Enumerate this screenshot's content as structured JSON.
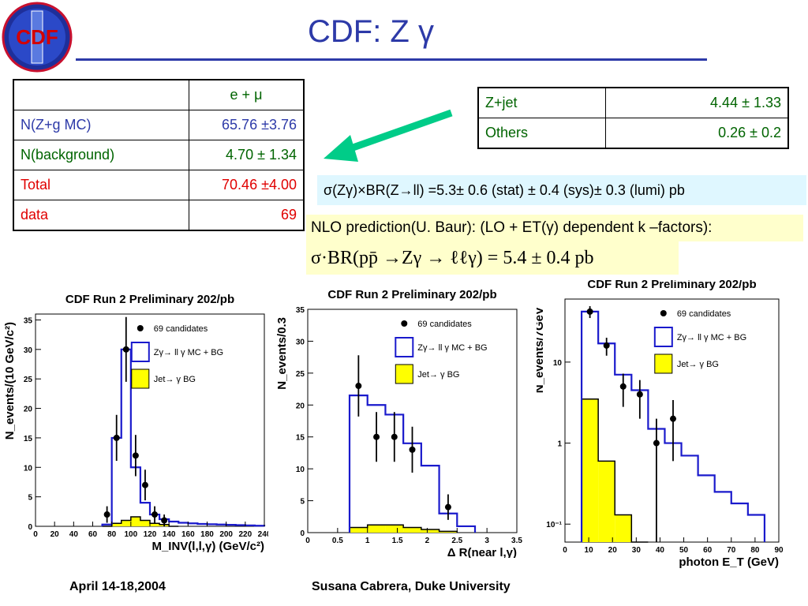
{
  "slide": {
    "title": "CDF:  Z γ",
    "logo_text": "CDF",
    "footer_left": "April 14-18,2004",
    "footer_center": "Susana Cabrera, Duke University"
  },
  "table_main": {
    "header": [
      "",
      "e + μ"
    ],
    "rows": [
      {
        "label": "N(Z+g MC)",
        "value": "65.76 ±3.76",
        "color": "#2d3aa8"
      },
      {
        "label": "N(background)",
        "value": "4.70 ± 1.34",
        "color": "#006400"
      },
      {
        "label": "Total",
        "value": "70.46 ±4.00",
        "color": "#e00000"
      },
      {
        "label": "data",
        "value": "69",
        "color": "#e00000"
      }
    ]
  },
  "table_bg": {
    "rows": [
      {
        "label": "Z+jet",
        "value": "4.44 ± 1.33"
      },
      {
        "label": "Others",
        "value": "0.26 ± 0.2"
      }
    ]
  },
  "cross_section": "σ(Zγ)×BR(Z→ll) =5.3± 0.6 (stat) ± 0.4 (sys)±  0.3 (lumi) pb",
  "nlo_text": "NLO prediction(U. Baur): (LO + ET(γ) dependent k –factors):",
  "prediction": "σ·BR(pp̄ →Zγ → ℓℓγ)  = 5.4 ± 0.4 pb",
  "colors": {
    "mc_line": "#1a1acc",
    "bg_fill": "#ffff00",
    "accent": "#2d3aa8",
    "arrow": "#00cc88"
  },
  "legend": {
    "data": "69 candidates",
    "mc": "Zγ→ ll γ MC + BG",
    "bg": "Jet→ γ BG"
  },
  "chart_data": [
    {
      "type": "histogram",
      "title": "CDF Run 2 Preliminary 202/pb",
      "xlabel": "M_INV(l,l,γ) (GeV/c²)",
      "ylabel": "N_events/(10 GeV/c²)",
      "xlim": [
        0,
        240
      ],
      "ylim": [
        0,
        36
      ],
      "xticks": [
        0,
        20,
        40,
        60,
        80,
        100,
        120,
        140,
        160,
        180,
        200,
        220,
        240
      ],
      "yticks": [
        0,
        5,
        10,
        15,
        20,
        25,
        30,
        35
      ],
      "log": false,
      "mc_edges": [
        70,
        80,
        90,
        100,
        110,
        120,
        130,
        140,
        150,
        160,
        170,
        180,
        190,
        200,
        210,
        220,
        230,
        240
      ],
      "mc_values": [
        0.3,
        15,
        30,
        10,
        4,
        2,
        1.2,
        0.8,
        0.6,
        0.5,
        0.4,
        0.35,
        0.3,
        0.25,
        0.2,
        0.15,
        0.1
      ],
      "bg_edges": [
        70,
        80,
        90,
        100,
        110,
        120,
        130,
        140,
        150
      ],
      "bg_values": [
        0,
        0.5,
        1,
        1.6,
        1,
        0.5,
        0.3,
        0
      ],
      "data_points": [
        {
          "x": 75,
          "y": 2,
          "err": 1.4
        },
        {
          "x": 85,
          "y": 15,
          "err": 3.9
        },
        {
          "x": 95,
          "y": 30,
          "err": 5.5
        },
        {
          "x": 105,
          "y": 12,
          "err": 3.5
        },
        {
          "x": 115,
          "y": 7,
          "err": 2.6
        },
        {
          "x": 125,
          "y": 2,
          "err": 1.4
        },
        {
          "x": 135,
          "y": 1,
          "err": 1
        }
      ]
    },
    {
      "type": "histogram",
      "title": "CDF Run 2 Preliminary 202/pb",
      "xlabel": "Δ R(near l,γ)",
      "ylabel": "N_events/0.3",
      "xlim": [
        0,
        3.5
      ],
      "ylim": [
        0,
        35
      ],
      "xticks": [
        0,
        0.5,
        1,
        1.5,
        2,
        2.5,
        3,
        3.5
      ],
      "xtick_labels": [
        "0",
        "0.5",
        "1",
        "1.5",
        "2",
        "2.5",
        "3",
        "3.5"
      ],
      "yticks": [
        0,
        5,
        10,
        15,
        20,
        25,
        30,
        35
      ],
      "log": false,
      "mc_edges": [
        0.7,
        1.0,
        1.3,
        1.6,
        1.9,
        2.2,
        2.5,
        2.8
      ],
      "mc_values": [
        21.5,
        20,
        18.5,
        14,
        10.5,
        3,
        1
      ],
      "bg_edges": [
        0.7,
        1.0,
        1.3,
        1.6,
        1.9,
        2.2,
        2.5
      ],
      "bg_values": [
        0.8,
        1.2,
        1.2,
        0.8,
        0.5,
        0.2
      ],
      "data_points": [
        {
          "x": 0.85,
          "y": 23,
          "err": 4.8
        },
        {
          "x": 1.15,
          "y": 15,
          "err": 3.9
        },
        {
          "x": 1.45,
          "y": 15,
          "err": 3.9
        },
        {
          "x": 1.75,
          "y": 13,
          "err": 3.6
        },
        {
          "x": 2.35,
          "y": 4,
          "err": 2
        }
      ]
    },
    {
      "type": "histogram",
      "title": "CDF Run 2 Preliminary 202/pb",
      "xlabel": "photon E_T (GeV)",
      "ylabel": "N_events/7GeV",
      "xlim": [
        0,
        90
      ],
      "ylim": [
        0.06,
        60
      ],
      "xticks": [
        0,
        10,
        20,
        30,
        40,
        50,
        60,
        70,
        80,
        90
      ],
      "yticks": [
        0.1,
        1,
        10
      ],
      "ytick_labels": [
        "10⁻¹",
        "1",
        "10"
      ],
      "log": true,
      "mc_edges": [
        7,
        14,
        21,
        28,
        35,
        42,
        49,
        56,
        63,
        70,
        77,
        84
      ],
      "mc_values": [
        42,
        17,
        7,
        4.5,
        1.5,
        1,
        0.7,
        0.4,
        0.25,
        0.18,
        0.13
      ],
      "bg_edges": [
        7,
        14,
        21,
        28,
        35
      ],
      "bg_values": [
        3.5,
        0.6,
        0.13,
        0.01
      ],
      "data_points": [
        {
          "x": 10.5,
          "y": 42,
          "err_lo": 7,
          "err_hi": 7
        },
        {
          "x": 17.5,
          "y": 16,
          "err_lo": 4,
          "err_hi": 4
        },
        {
          "x": 24.5,
          "y": 5,
          "err_lo": 2.2,
          "err_hi": 2.2
        },
        {
          "x": 31.5,
          "y": 4,
          "err_lo": 2,
          "err_hi": 2
        },
        {
          "x": 38.5,
          "y": 1,
          "err_lo": 0.99,
          "err_hi": 1
        },
        {
          "x": 45.5,
          "y": 2,
          "err_lo": 1.4,
          "err_hi": 1.4
        }
      ]
    }
  ]
}
